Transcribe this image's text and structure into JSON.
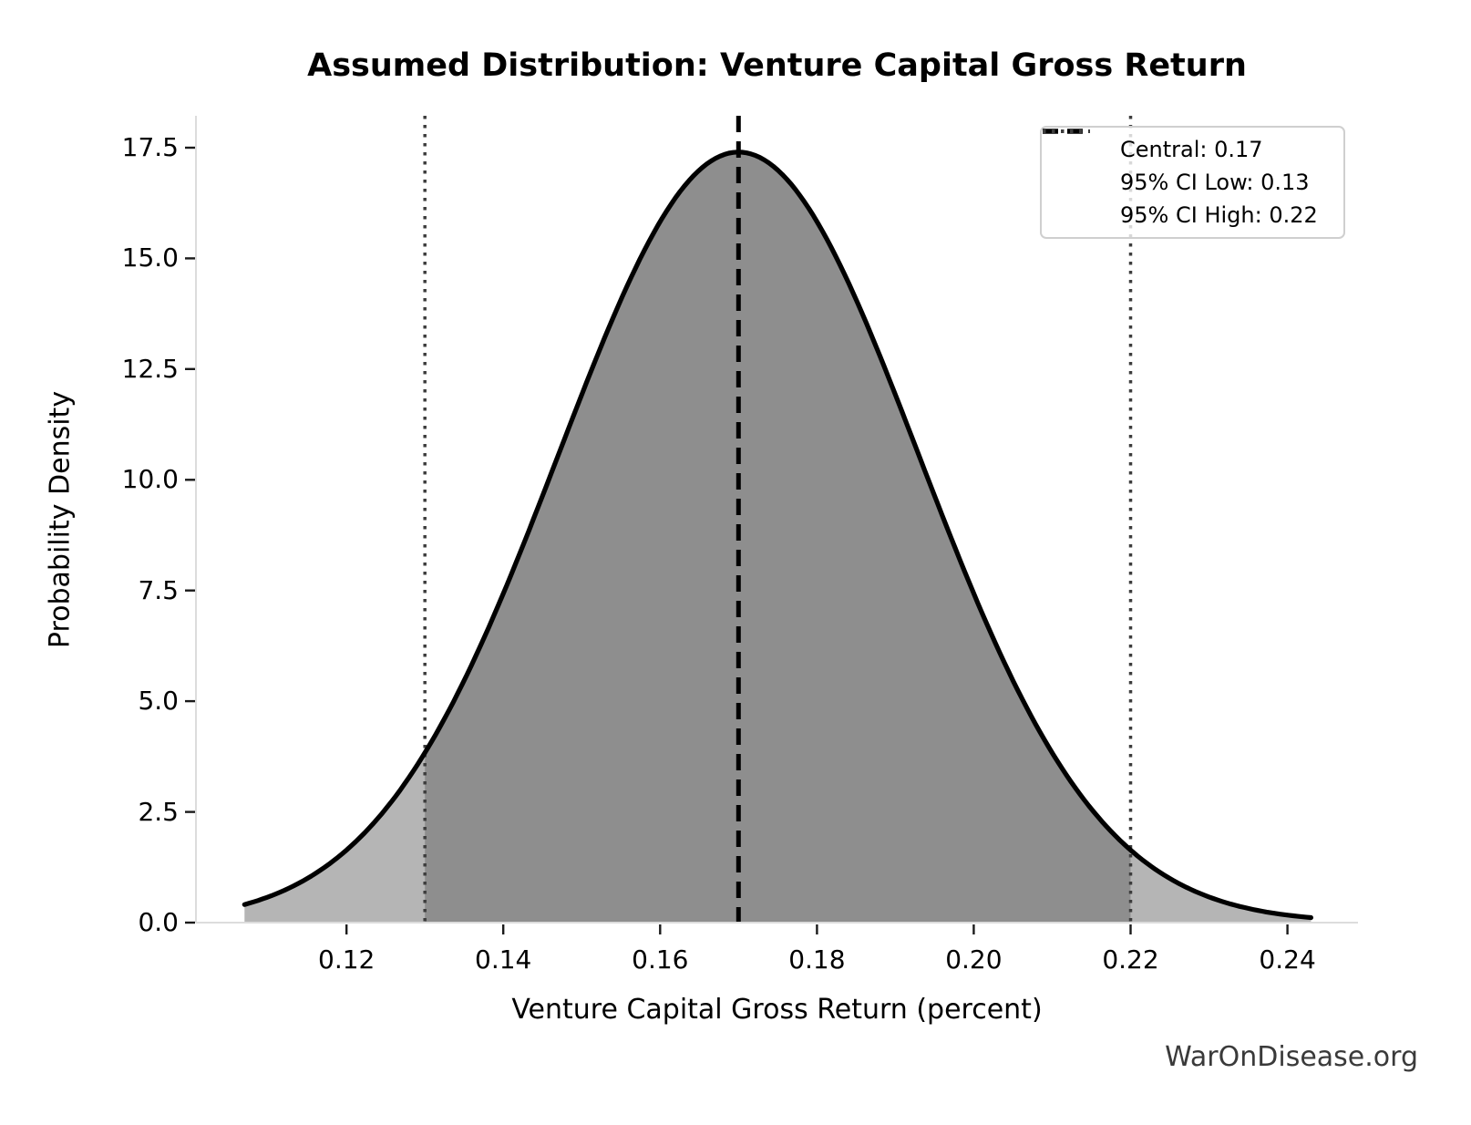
{
  "chart_data": {
    "type": "area",
    "title": "Assumed Distribution: Venture Capital Gross Return",
    "xlabel": "Venture Capital Gross Return (percent)",
    "ylabel": "Probability Density",
    "watermark": "WarOnDisease.org",
    "grid": false,
    "legend_position": "upper right",
    "distribution": {
      "family": "normal",
      "central": 0.17,
      "ci95_low": 0.13,
      "ci95_high": 0.22,
      "sigma": 0.023,
      "peak_density": 17.4,
      "curve_x_min": 0.107,
      "curve_x_max": 0.243
    },
    "vlines": [
      {
        "label": "Central: 0.17",
        "value": 0.17,
        "style": "dashed",
        "color": "#000000",
        "width": 5
      },
      {
        "label": "95% CI Low: 0.13",
        "value": 0.13,
        "style": "dotted",
        "color": "#3d3d3d",
        "width": 3.5
      },
      {
        "label": "95% CI High: 0.22",
        "value": 0.22,
        "style": "dotted",
        "color": "#3d3d3d",
        "width": 3.5
      }
    ],
    "xlim": [
      0.1008,
      0.249
    ],
    "ylim": [
      0,
      18.22
    ],
    "xticks": {
      "values": [
        0.12,
        0.14,
        0.16,
        0.18,
        0.2,
        0.22,
        0.24
      ],
      "labels": [
        "0.12",
        "0.14",
        "0.16",
        "0.18",
        "0.20",
        "0.22",
        "0.24"
      ]
    },
    "yticks": {
      "values": [
        0.0,
        2.5,
        5.0,
        7.5,
        10.0,
        12.5,
        15.0,
        17.5
      ],
      "labels": [
        "0.0",
        "2.5",
        "5.0",
        "7.5",
        "10.0",
        "12.5",
        "15.0",
        "17.5"
      ]
    },
    "colors": {
      "curve": "#000000",
      "fill_inside_ci": "#8e8e8e",
      "fill_outside_ci": "#b5b5b5",
      "spine": "#dcdcdc",
      "tick_mark": "#1a1a1a",
      "legend_border": "#cfcfcf",
      "watermark": "#3a3a3a"
    }
  }
}
